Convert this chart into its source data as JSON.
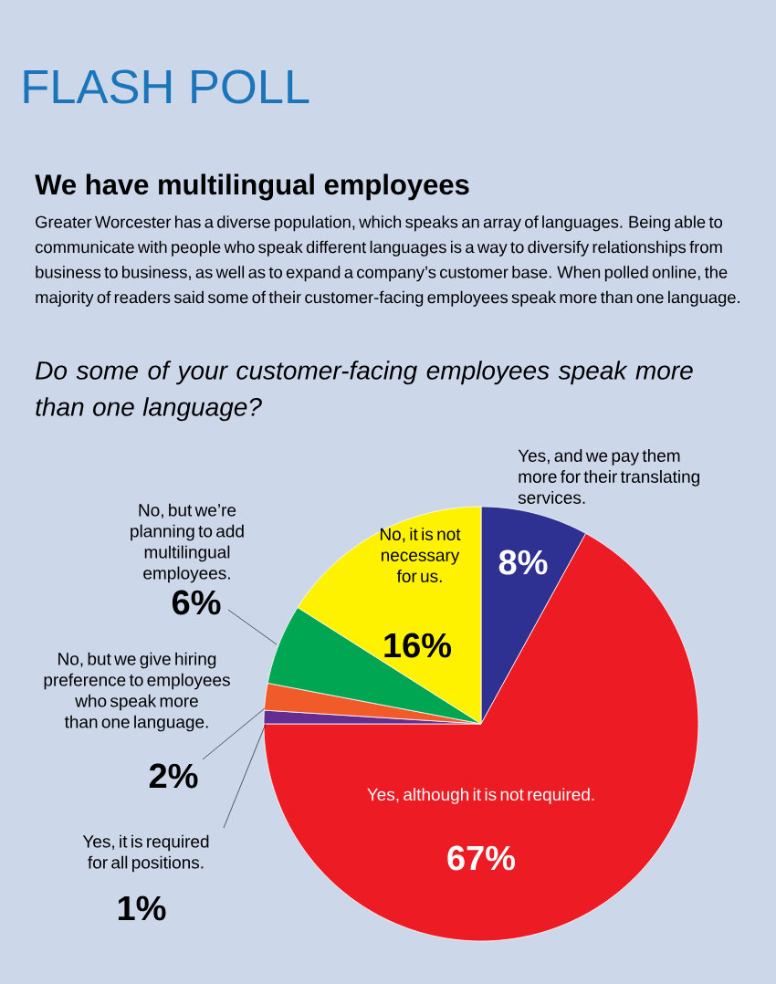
{
  "chart_data": {
    "type": "pie",
    "title": "FLASH POLL",
    "subtitle": "We have multilingual employees",
    "annotations": [
      "Greater Worcester has a diverse population, which speaks an array of languages. Being able to communicate with people who speak different languages is a way to diversify relationships from business to business, as well as to expand a company’s customer base. When polled online, the majority of readers said some of their customer-facing employees speak more than one language.",
      "Do some of your customer-facing employees speak more than one language?"
    ],
    "categories": [
      "Yes, and we pay them more for their translating services.",
      "Yes, although it is not required.",
      "Yes, it is required for all positions.",
      "No, but we give hiring preference to employees who speak more than one language.",
      "No, but we’re planning to add multilingual employees.",
      "No, it is not necessary for us."
    ],
    "values": [
      8,
      67,
      1,
      2,
      6,
      16
    ],
    "value_labels": [
      "8%",
      "67%",
      "1%",
      "2%",
      "6%",
      "16%"
    ],
    "colors": [
      "#2e3192",
      "#ed1c24",
      "#662d91",
      "#f15a29",
      "#00a651",
      "#fff200"
    ]
  }
}
